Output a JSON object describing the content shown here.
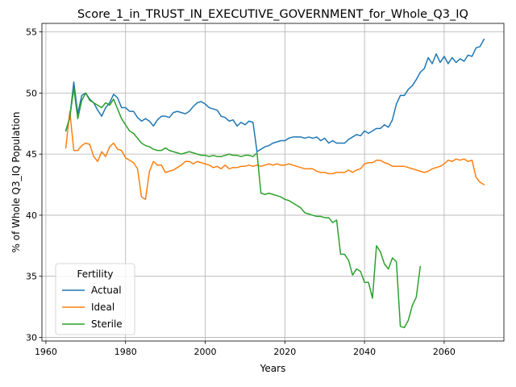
{
  "chart_data": {
    "type": "line",
    "title": "Score_1_in_TRUST_IN_EXECUTIVE_GOVERNMENT_for_Whole_Q3_IQ",
    "xlabel": "Years",
    "ylabel": "% of Whole Q3_IQ Population",
    "xlim": [
      1959,
      2075
    ],
    "ylim": [
      29.7,
      55.7
    ],
    "xticks": [
      1960,
      1980,
      2000,
      2020,
      2040,
      2060
    ],
    "yticks": [
      30,
      35,
      40,
      45,
      50,
      55
    ],
    "grid": true,
    "legend": {
      "title": "Fertility",
      "position": "lower-left"
    },
    "colors": {
      "Actual": "#1f77b4",
      "Ideal": "#ff7f0e",
      "Sterile": "#2ca02c"
    },
    "series": [
      {
        "name": "Actual",
        "points": [
          [
            1965,
            46.9
          ],
          [
            1966,
            48.0
          ],
          [
            1967,
            50.9
          ],
          [
            1968,
            48.3
          ],
          [
            1969,
            49.8
          ],
          [
            1970,
            50.0
          ],
          [
            1971,
            49.5
          ],
          [
            1972,
            49.2
          ],
          [
            1973,
            48.6
          ],
          [
            1974,
            48.1
          ],
          [
            1975,
            48.8
          ],
          [
            1976,
            49.2
          ],
          [
            1977,
            49.9
          ],
          [
            1978,
            49.6
          ],
          [
            1979,
            48.8
          ],
          [
            1980,
            48.8
          ],
          [
            1981,
            48.5
          ],
          [
            1982,
            48.5
          ],
          [
            1983,
            48.0
          ],
          [
            1984,
            47.7
          ],
          [
            1985,
            47.9
          ],
          [
            1986,
            47.7
          ],
          [
            1987,
            47.3
          ],
          [
            1988,
            47.8
          ],
          [
            1989,
            48.1
          ],
          [
            1990,
            48.1
          ],
          [
            1991,
            48.0
          ],
          [
            1992,
            48.4
          ],
          [
            1993,
            48.5
          ],
          [
            1994,
            48.4
          ],
          [
            1995,
            48.3
          ],
          [
            1996,
            48.5
          ],
          [
            1997,
            48.9
          ],
          [
            1998,
            49.2
          ],
          [
            1999,
            49.3
          ],
          [
            2000,
            49.1
          ],
          [
            2001,
            48.8
          ],
          [
            2002,
            48.7
          ],
          [
            2003,
            48.6
          ],
          [
            2004,
            48.1
          ],
          [
            2005,
            48.0
          ],
          [
            2006,
            47.7
          ],
          [
            2007,
            47.8
          ],
          [
            2008,
            47.3
          ],
          [
            2009,
            47.6
          ],
          [
            2010,
            47.4
          ],
          [
            2011,
            47.7
          ],
          [
            2012,
            47.6
          ],
          [
            2013,
            45.2
          ],
          [
            2014,
            45.4
          ],
          [
            2015,
            45.6
          ],
          [
            2016,
            45.7
          ],
          [
            2017,
            45.9
          ],
          [
            2018,
            46.0
          ],
          [
            2019,
            46.1
          ],
          [
            2020,
            46.1
          ],
          [
            2021,
            46.3
          ],
          [
            2022,
            46.4
          ],
          [
            2023,
            46.4
          ],
          [
            2024,
            46.4
          ],
          [
            2025,
            46.3
          ],
          [
            2026,
            46.4
          ],
          [
            2027,
            46.3
          ],
          [
            2028,
            46.4
          ],
          [
            2029,
            46.1
          ],
          [
            2030,
            46.3
          ],
          [
            2031,
            45.9
          ],
          [
            2032,
            46.1
          ],
          [
            2033,
            45.9
          ],
          [
            2034,
            45.9
          ],
          [
            2035,
            45.9
          ],
          [
            2036,
            46.2
          ],
          [
            2037,
            46.4
          ],
          [
            2038,
            46.6
          ],
          [
            2039,
            46.5
          ],
          [
            2040,
            46.9
          ],
          [
            2041,
            46.7
          ],
          [
            2042,
            46.9
          ],
          [
            2043,
            47.1
          ],
          [
            2044,
            47.1
          ],
          [
            2045,
            47.4
          ],
          [
            2046,
            47.2
          ],
          [
            2047,
            47.8
          ],
          [
            2048,
            49.1
          ],
          [
            2049,
            49.8
          ],
          [
            2050,
            49.8
          ],
          [
            2051,
            50.3
          ],
          [
            2052,
            50.6
          ],
          [
            2053,
            51.1
          ],
          [
            2054,
            51.7
          ],
          [
            2055,
            52.0
          ],
          [
            2056,
            52.9
          ],
          [
            2057,
            52.4
          ],
          [
            2058,
            53.2
          ],
          [
            2059,
            52.5
          ],
          [
            2060,
            53.0
          ],
          [
            2061,
            52.4
          ],
          [
            2062,
            52.9
          ],
          [
            2063,
            52.5
          ],
          [
            2064,
            52.8
          ],
          [
            2065,
            52.6
          ],
          [
            2066,
            53.1
          ],
          [
            2067,
            53.0
          ],
          [
            2068,
            53.7
          ],
          [
            2069,
            53.8
          ],
          [
            2070,
            54.4
          ]
        ]
      },
      {
        "name": "Ideal",
        "points": [
          [
            1965,
            45.5
          ],
          [
            1966,
            48.5
          ],
          [
            1967,
            45.3
          ],
          [
            1968,
            45.3
          ],
          [
            1969,
            45.7
          ],
          [
            1970,
            45.9
          ],
          [
            1971,
            45.8
          ],
          [
            1972,
            44.8
          ],
          [
            1973,
            44.4
          ],
          [
            1974,
            45.2
          ],
          [
            1975,
            44.8
          ],
          [
            1976,
            45.6
          ],
          [
            1977,
            45.9
          ],
          [
            1978,
            45.4
          ],
          [
            1979,
            45.3
          ],
          [
            1980,
            44.7
          ],
          [
            1981,
            44.5
          ],
          [
            1982,
            44.3
          ],
          [
            1983,
            43.8
          ],
          [
            1984,
            41.5
          ],
          [
            1985,
            41.3
          ],
          [
            1986,
            43.6
          ],
          [
            1987,
            44.4
          ],
          [
            1988,
            44.1
          ],
          [
            1989,
            44.1
          ],
          [
            1990,
            43.5
          ],
          [
            1991,
            43.6
          ],
          [
            1992,
            43.7
          ],
          [
            1993,
            43.9
          ],
          [
            1994,
            44.1
          ],
          [
            1995,
            44.4
          ],
          [
            1996,
            44.4
          ],
          [
            1997,
            44.2
          ],
          [
            1998,
            44.4
          ],
          [
            1999,
            44.3
          ],
          [
            2000,
            44.2
          ],
          [
            2001,
            44.1
          ],
          [
            2002,
            43.9
          ],
          [
            2003,
            44.0
          ],
          [
            2004,
            43.8
          ],
          [
            2005,
            44.1
          ],
          [
            2006,
            43.8
          ],
          [
            2007,
            43.9
          ],
          [
            2008,
            43.9
          ],
          [
            2009,
            44.0
          ],
          [
            2010,
            44.0
          ],
          [
            2011,
            44.1
          ],
          [
            2012,
            44.0
          ],
          [
            2013,
            44.1
          ],
          [
            2014,
            44.0
          ],
          [
            2015,
            44.1
          ],
          [
            2016,
            44.2
          ],
          [
            2017,
            44.1
          ],
          [
            2018,
            44.2
          ],
          [
            2019,
            44.1
          ],
          [
            2020,
            44.1
          ],
          [
            2021,
            44.2
          ],
          [
            2022,
            44.1
          ],
          [
            2023,
            44.0
          ],
          [
            2024,
            43.9
          ],
          [
            2025,
            43.8
          ],
          [
            2026,
            43.8
          ],
          [
            2027,
            43.8
          ],
          [
            2028,
            43.6
          ],
          [
            2029,
            43.5
          ],
          [
            2030,
            43.5
          ],
          [
            2031,
            43.4
          ],
          [
            2032,
            43.4
          ],
          [
            2033,
            43.5
          ],
          [
            2034,
            43.5
          ],
          [
            2035,
            43.5
          ],
          [
            2036,
            43.7
          ],
          [
            2037,
            43.5
          ],
          [
            2038,
            43.7
          ],
          [
            2039,
            43.8
          ],
          [
            2040,
            44.2
          ],
          [
            2041,
            44.3
          ],
          [
            2042,
            44.3
          ],
          [
            2043,
            44.5
          ],
          [
            2044,
            44.5
          ],
          [
            2045,
            44.3
          ],
          [
            2046,
            44.2
          ],
          [
            2047,
            44.0
          ],
          [
            2048,
            44.0
          ],
          [
            2049,
            44.0
          ],
          [
            2050,
            44.0
          ],
          [
            2051,
            43.9
          ],
          [
            2052,
            43.8
          ],
          [
            2053,
            43.7
          ],
          [
            2054,
            43.6
          ],
          [
            2055,
            43.5
          ],
          [
            2056,
            43.6
          ],
          [
            2057,
            43.8
          ],
          [
            2058,
            43.9
          ],
          [
            2059,
            44.0
          ],
          [
            2060,
            44.2
          ],
          [
            2061,
            44.5
          ],
          [
            2062,
            44.4
          ],
          [
            2063,
            44.6
          ],
          [
            2064,
            44.5
          ],
          [
            2065,
            44.6
          ],
          [
            2066,
            44.4
          ],
          [
            2067,
            44.5
          ],
          [
            2068,
            43.1
          ],
          [
            2069,
            42.7
          ],
          [
            2070,
            42.5
          ]
        ]
      },
      {
        "name": "Sterile",
        "points": [
          [
            1965,
            46.9
          ],
          [
            1966,
            48.0
          ],
          [
            1967,
            50.4
          ],
          [
            1968,
            47.9
          ],
          [
            1969,
            49.4
          ],
          [
            1970,
            50.0
          ],
          [
            1971,
            49.4
          ],
          [
            1972,
            49.2
          ],
          [
            1973,
            49.0
          ],
          [
            1974,
            48.8
          ],
          [
            1975,
            49.2
          ],
          [
            1976,
            49.0
          ],
          [
            1977,
            49.5
          ],
          [
            1978,
            48.7
          ],
          [
            1979,
            47.9
          ],
          [
            1980,
            47.4
          ],
          [
            1981,
            46.9
          ],
          [
            1982,
            46.7
          ],
          [
            1983,
            46.3
          ],
          [
            1984,
            45.9
          ],
          [
            1985,
            45.7
          ],
          [
            1986,
            45.6
          ],
          [
            1987,
            45.4
          ],
          [
            1988,
            45.3
          ],
          [
            1989,
            45.3
          ],
          [
            1990,
            45.5
          ],
          [
            1991,
            45.3
          ],
          [
            1992,
            45.2
          ],
          [
            1993,
            45.1
          ],
          [
            1994,
            45.0
          ],
          [
            1995,
            45.1
          ],
          [
            1996,
            45.2
          ],
          [
            1997,
            45.1
          ],
          [
            1998,
            45.0
          ],
          [
            1999,
            44.9
          ],
          [
            2000,
            44.9
          ],
          [
            2001,
            44.8
          ],
          [
            2002,
            44.9
          ],
          [
            2003,
            44.8
          ],
          [
            2004,
            44.8
          ],
          [
            2005,
            44.9
          ],
          [
            2006,
            45.0
          ],
          [
            2007,
            44.9
          ],
          [
            2008,
            44.9
          ],
          [
            2009,
            44.8
          ],
          [
            2010,
            44.9
          ],
          [
            2011,
            44.9
          ],
          [
            2012,
            44.8
          ],
          [
            2013,
            45.1
          ],
          [
            2014,
            41.8
          ],
          [
            2015,
            41.7
          ],
          [
            2016,
            41.8
          ],
          [
            2017,
            41.7
          ],
          [
            2018,
            41.6
          ],
          [
            2019,
            41.5
          ],
          [
            2020,
            41.3
          ],
          [
            2021,
            41.2
          ],
          [
            2022,
            41.0
          ],
          [
            2023,
            40.8
          ],
          [
            2024,
            40.6
          ],
          [
            2025,
            40.2
          ],
          [
            2026,
            40.1
          ],
          [
            2027,
            40.0
          ],
          [
            2028,
            39.9
          ],
          [
            2029,
            39.9
          ],
          [
            2030,
            39.8
          ],
          [
            2031,
            39.8
          ],
          [
            2032,
            39.4
          ],
          [
            2033,
            39.6
          ],
          [
            2034,
            36.8
          ],
          [
            2035,
            36.8
          ],
          [
            2036,
            36.3
          ],
          [
            2037,
            35.1
          ],
          [
            2038,
            35.6
          ],
          [
            2039,
            35.4
          ],
          [
            2040,
            34.5
          ],
          [
            2041,
            34.5
          ],
          [
            2042,
            33.2
          ],
          [
            2043,
            37.5
          ],
          [
            2044,
            37.0
          ],
          [
            2045,
            36.0
          ],
          [
            2046,
            35.6
          ],
          [
            2047,
            36.5
          ],
          [
            2048,
            36.2
          ],
          [
            2049,
            30.9
          ],
          [
            2050,
            30.8
          ],
          [
            2051,
            31.4
          ],
          [
            2052,
            32.6
          ],
          [
            2053,
            33.3
          ],
          [
            2054,
            35.8
          ]
        ]
      }
    ]
  }
}
